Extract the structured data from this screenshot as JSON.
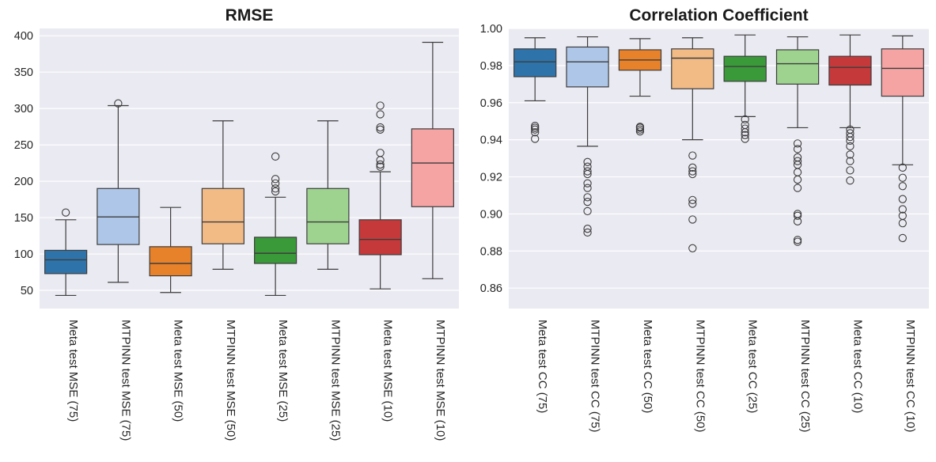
{
  "chart_data": [
    {
      "type": "box",
      "title": "RMSE",
      "xlabel": "",
      "ylabel": "",
      "ylim": [
        25,
        410
      ],
      "yticks": [
        50,
        100,
        150,
        200,
        250,
        300,
        350,
        400
      ],
      "grid": true,
      "series": [
        {
          "name": "Meta test MSE (75)",
          "color": "#2e74ab",
          "whisker_low": 43,
          "q1": 73,
          "median": 92,
          "q3": 105,
          "whisker_high": 147,
          "outliers": [
            157
          ]
        },
        {
          "name": "MTPINN test MSE (75)",
          "color": "#aec7e8",
          "whisker_low": 61,
          "q1": 113,
          "median": 151,
          "q3": 190,
          "whisker_high": 304,
          "outliers": [
            307
          ]
        },
        {
          "name": "Meta test MSE (50)",
          "color": "#e8822a",
          "whisker_low": 47,
          "q1": 70,
          "median": 87,
          "q3": 110,
          "whisker_high": 164,
          "outliers": []
        },
        {
          "name": "MTPINN test MSE (50)",
          "color": "#f2bb86",
          "whisker_low": 79,
          "q1": 114,
          "median": 144,
          "q3": 190,
          "whisker_high": 283,
          "outliers": []
        },
        {
          "name": "Meta test MSE (25)",
          "color": "#3a9a3a",
          "whisker_low": 43,
          "q1": 87,
          "median": 101,
          "q3": 123,
          "whisker_high": 178,
          "outliers": [
            186,
            190,
            197,
            203,
            234
          ]
        },
        {
          "name": "MTPINN test MSE (25)",
          "color": "#9ed38f",
          "whisker_low": 79,
          "q1": 114,
          "median": 144,
          "q3": 190,
          "whisker_high": 283,
          "outliers": []
        },
        {
          "name": "Meta test MSE (10)",
          "color": "#c6393b",
          "whisker_low": 52,
          "q1": 99,
          "median": 120,
          "q3": 147,
          "whisker_high": 213,
          "outliers": [
            220,
            223,
            229,
            239,
            271,
            274,
            292,
            304
          ]
        },
        {
          "name": "MTPINN test MSE (10)",
          "color": "#f5a3a3",
          "whisker_low": 66,
          "q1": 165,
          "median": 225,
          "q3": 272,
          "whisker_high": 391,
          "outliers": []
        }
      ]
    },
    {
      "type": "box",
      "title": "Correlation Coefficient",
      "xlabel": "",
      "ylabel": "",
      "ylim": [
        0.849,
        1.0
      ],
      "yticks": [
        0.86,
        0.88,
        0.9,
        0.92,
        0.94,
        0.96,
        0.98,
        1.0
      ],
      "ytick_labels": [
        "0.86",
        "0.88",
        "0.90",
        "0.92",
        "0.94",
        "0.96",
        "0.98",
        "1.00"
      ],
      "grid": true,
      "series": [
        {
          "name": "Meta test CC (75)",
          "color": "#2e74ab",
          "whisker_low": 0.961,
          "q1": 0.974,
          "median": 0.982,
          "q3": 0.989,
          "whisker_high": 0.995,
          "outliers": [
            0.9405,
            0.944,
            0.9455,
            0.9465,
            0.9475
          ]
        },
        {
          "name": "MTPINN test CC (75)",
          "color": "#aec7e8",
          "whisker_low": 0.9365,
          "q1": 0.9685,
          "median": 0.982,
          "q3": 0.99,
          "whisker_high": 0.9955,
          "outliers": [
            0.89,
            0.892,
            0.9015,
            0.9065,
            0.909,
            0.914,
            0.9165,
            0.9215,
            0.923,
            0.9255,
            0.928
          ]
        },
        {
          "name": "Meta test CC (50)",
          "color": "#e8822a",
          "whisker_low": 0.9635,
          "q1": 0.9775,
          "median": 0.983,
          "q3": 0.9885,
          "whisker_high": 0.9945,
          "outliers": [
            0.9445,
            0.9455,
            0.9465,
            0.947
          ]
        },
        {
          "name": "MTPINN test CC (50)",
          "color": "#f2bb86",
          "whisker_low": 0.94,
          "q1": 0.9675,
          "median": 0.984,
          "q3": 0.989,
          "whisker_high": 0.995,
          "outliers": [
            0.8815,
            0.897,
            0.9055,
            0.9075,
            0.9215,
            0.923,
            0.925,
            0.9315
          ]
        },
        {
          "name": "Meta test CC (25)",
          "color": "#3a9a3a",
          "whisker_low": 0.9525,
          "q1": 0.9715,
          "median": 0.9795,
          "q3": 0.985,
          "whisker_high": 0.9965,
          "outliers": [
            0.9405,
            0.9425,
            0.944,
            0.946,
            0.948,
            0.951
          ]
        },
        {
          "name": "MTPINN test CC (25)",
          "color": "#9ed38f",
          "whisker_low": 0.9465,
          "q1": 0.97,
          "median": 0.981,
          "q3": 0.9885,
          "whisker_high": 0.9955,
          "outliers": [
            0.885,
            0.886,
            0.896,
            0.899,
            0.9,
            0.914,
            0.9185,
            0.9225,
            0.9265,
            0.9285,
            0.9305,
            0.935,
            0.938
          ]
        },
        {
          "name": "Meta test CC (10)",
          "color": "#c6393b",
          "whisker_low": 0.9465,
          "q1": 0.9695,
          "median": 0.979,
          "q3": 0.985,
          "whisker_high": 0.9965,
          "outliers": [
            0.918,
            0.9235,
            0.9285,
            0.932,
            0.9365,
            0.9395,
            0.9415,
            0.9435,
            0.9455
          ]
        },
        {
          "name": "MTPINN test CC (10)",
          "color": "#f5a3a3",
          "whisker_low": 0.9265,
          "q1": 0.9635,
          "median": 0.9785,
          "q3": 0.989,
          "whisker_high": 0.996,
          "outliers": [
            0.887,
            0.895,
            0.899,
            0.9025,
            0.908,
            0.915,
            0.9195,
            0.925
          ]
        }
      ]
    }
  ]
}
